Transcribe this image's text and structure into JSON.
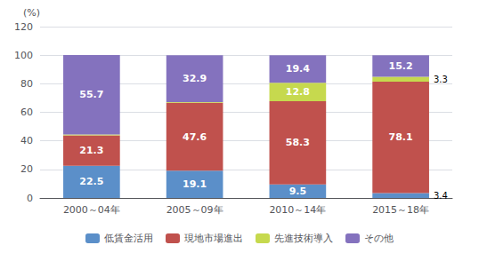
{
  "chart_data": {
    "type": "bar",
    "stacked": true,
    "data_labels": true,
    "grid": true,
    "legend": "bottom",
    "categories": [
      "2000～04年",
      "2005～09年",
      "2010～14年",
      "2015～18年"
    ],
    "ylabel": "(%)",
    "ylim": [
      0,
      120
    ],
    "yticks": [
      0,
      20,
      40,
      60,
      80,
      100,
      120
    ],
    "series": [
      {
        "name": "低賃金活用",
        "color": "#5b8fc9",
        "values": [
          22.5,
          19.1,
          9.5,
          3.4
        ]
      },
      {
        "name": "現地市場進出",
        "color": "#c0514d",
        "values": [
          21.3,
          47.6,
          58.3,
          78.1
        ]
      },
      {
        "name": "先進技術導入",
        "color": "#c6d94e",
        "values": [
          0.6,
          0.4,
          12.8,
          3.3
        ],
        "value_labels": [
          null,
          null,
          "12.8",
          "3.3"
        ]
      },
      {
        "name": "その他",
        "color": "#8472be",
        "values": [
          55.7,
          32.9,
          19.4,
          15.2
        ]
      }
    ]
  }
}
